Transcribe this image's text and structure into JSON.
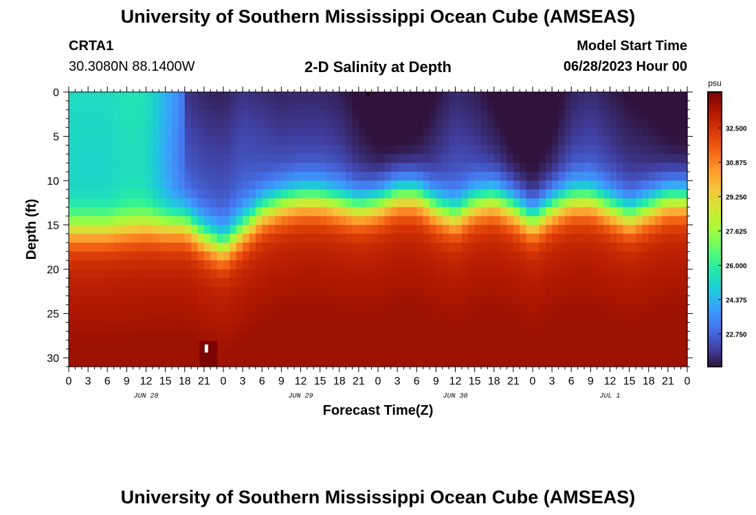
{
  "header": {
    "title": "University of Southern Mississippi Ocean Cube (AMSEAS)",
    "station_id": "CRTA1",
    "coords": "30.3080N  88.1400W",
    "plot_title": "2-D Salinity at Depth",
    "model_label": "Model Start Time",
    "model_start": "06/28/2023 Hour 00"
  },
  "footer": {
    "title": "University of Southern Mississippi Ocean Cube (AMSEAS)"
  },
  "chart_data": {
    "type": "heatmap",
    "title": "2-D Salinity at Depth",
    "xlabel": "Forecast Time(Z)",
    "ylabel": "Depth (ft)",
    "x_hours_range": [
      0,
      96
    ],
    "x_tick_labels": [
      "0",
      "3",
      "6",
      "9",
      "12",
      "15",
      "18",
      "21",
      "0",
      "3",
      "6",
      "9",
      "12",
      "15",
      "18",
      "21",
      "0",
      "3",
      "6",
      "9",
      "12",
      "15",
      "18",
      "21",
      "0",
      "3",
      "6",
      "9",
      "12",
      "15",
      "18",
      "21",
      "0"
    ],
    "date_labels": [
      {
        "text": "JUN 28",
        "hour": 12
      },
      {
        "text": "JUN 29",
        "hour": 36
      },
      {
        "text": "JUN 30",
        "hour": 60
      },
      {
        "text": "JUL 1",
        "hour": 84
      }
    ],
    "y_range": [
      0,
      31
    ],
    "y_ticks": [
      0,
      5,
      10,
      15,
      20,
      25,
      30
    ],
    "colorbar": {
      "unit": "psu",
      "range": [
        21.2,
        34.2
      ],
      "ticks": [
        32.5,
        30.875,
        29.25,
        27.625,
        26.0,
        24.375,
        22.75
      ],
      "tick_labels": [
        "32.500",
        "30.875",
        "29.250",
        "27.625",
        "26.000",
        "24.375",
        "22.750"
      ]
    },
    "hours": [
      0,
      3,
      6,
      9,
      12,
      15,
      18,
      21,
      24,
      27,
      30,
      33,
      36,
      39,
      42,
      45,
      48,
      51,
      54,
      57,
      60,
      63,
      66,
      69,
      72,
      75,
      78,
      81,
      84,
      87,
      90,
      93,
      96
    ],
    "halocline_depth_ft": [
      15.5,
      15.5,
      15.5,
      15.2,
      15,
      15,
      14.8,
      16.3,
      17.5,
      15.5,
      13.5,
      12.5,
      12,
      12,
      12.5,
      13,
      12.5,
      11.5,
      11.5,
      13,
      14,
      12.5,
      12,
      13,
      14.5,
      13,
      12,
      12,
      13,
      14,
      13,
      12,
      12
    ],
    "surface_salinity_psu": [
      25.0,
      25.0,
      25.0,
      25.3,
      25.2,
      24.0,
      22.8,
      22.6,
      22.6,
      22.8,
      22.5,
      22.3,
      22.3,
      22.3,
      22.2,
      21.8,
      21.4,
      21.3,
      21.4,
      22.0,
      22.5,
      22.2,
      21.8,
      21.4,
      21.3,
      21.6,
      22.2,
      22.4,
      22.2,
      22.0,
      21.8,
      21.5,
      21.4
    ],
    "bottom_salinity_psu": 33.6
  },
  "colors": {
    "colormap": [
      "#30123b",
      "#4145ab",
      "#4675ed",
      "#39a2fc",
      "#1bcfd4",
      "#24eca6",
      "#61fc6c",
      "#a4fc3b",
      "#d1e834",
      "#f3c63a",
      "#fe9b2d",
      "#f36315",
      "#d93806",
      "#b11901",
      "#7a0402"
    ]
  }
}
